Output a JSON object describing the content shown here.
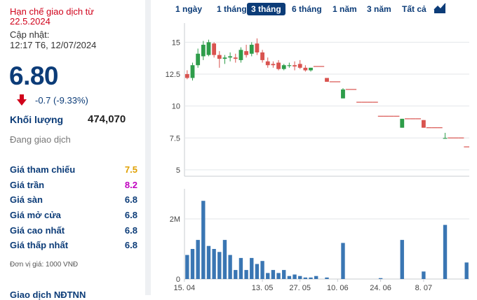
{
  "stock": {
    "status_line1": "Hạn chế giao dịch từ",
    "status_line2": "22.5.2024",
    "updated_label": "Cập nhật:",
    "updated_time": "12:17 T6, 12/07/2024",
    "price": "6.80",
    "change": "-0.7 (-9.33%)",
    "volume_label": "Khối lượng",
    "volume_value": "474,070",
    "trading_status": "Đang giao dịch",
    "stats": [
      {
        "label": "Giá tham chiếu",
        "value": "7.5",
        "color": "#e0a000"
      },
      {
        "label": "Giá trần",
        "value": "8.2",
        "color": "#c000c0"
      },
      {
        "label": "Giá sàn",
        "value": "6.8",
        "color": "#0c3c78"
      },
      {
        "label": "Giá mở cửa",
        "value": "6.8",
        "color": "#0c3c78"
      },
      {
        "label": "Giá cao nhất",
        "value": "6.8",
        "color": "#0c3c78"
      },
      {
        "label": "Giá thấp nhất",
        "value": "6.8",
        "color": "#0c3c78"
      }
    ],
    "unit": "Đơn vị giá: 1000 VNĐ",
    "bottom_cut": "Giao dịch NĐTNN"
  },
  "tabs": [
    "1 ngày",
    "1 tháng",
    "3 tháng",
    "6 tháng",
    "1 năm",
    "3 năm",
    "Tất cả"
  ],
  "active_tab": "3 tháng",
  "colors": {
    "up": "#2e9d4a",
    "down": "#d9534f",
    "ref": "#e0a000",
    "navy": "#0c3c78",
    "volume": "#3a76b3"
  },
  "chart_data": {
    "type": "candlestick",
    "price_axis": {
      "ticks": [
        5,
        7.5,
        10,
        12.5,
        15
      ],
      "ylim": [
        4.5,
        16.5
      ]
    },
    "volume_axis": {
      "ticks": [
        "0",
        "2M"
      ],
      "ylim": [
        0,
        3000000
      ]
    },
    "x_ticks": [
      "15. 04",
      "13. 05",
      "27. 05",
      "10. 06",
      "24. 06",
      "8. 07"
    ],
    "candles": [
      {
        "o": 12.5,
        "h": 12.8,
        "l": 12.1,
        "c": 12.2
      },
      {
        "o": 12.2,
        "h": 13.4,
        "l": 12.0,
        "c": 13.2
      },
      {
        "o": 13.2,
        "h": 14.5,
        "l": 13.0,
        "c": 14.1
      },
      {
        "o": 13.9,
        "h": 15.1,
        "l": 13.6,
        "c": 14.8
      },
      {
        "o": 14.0,
        "h": 15.2,
        "l": 13.9,
        "c": 15.0
      },
      {
        "o": 14.9,
        "h": 15.0,
        "l": 13.8,
        "c": 14.0
      },
      {
        "o": 14.0,
        "h": 14.3,
        "l": 13.0,
        "c": 13.7
      },
      {
        "o": 13.7,
        "h": 14.0,
        "l": 13.3,
        "c": 13.8
      },
      {
        "o": 13.8,
        "h": 14.2,
        "l": 13.5,
        "c": 13.9
      },
      {
        "o": 13.8,
        "h": 14.1,
        "l": 13.4,
        "c": 13.7
      },
      {
        "o": 13.6,
        "h": 14.6,
        "l": 13.4,
        "c": 14.4
      },
      {
        "o": 14.3,
        "h": 14.8,
        "l": 13.8,
        "c": 14.0
      },
      {
        "o": 14.1,
        "h": 15.0,
        "l": 13.9,
        "c": 14.8
      },
      {
        "o": 14.9,
        "h": 15.3,
        "l": 14.0,
        "c": 14.2
      },
      {
        "o": 14.2,
        "h": 14.4,
        "l": 13.4,
        "c": 13.6
      },
      {
        "o": 13.5,
        "h": 13.8,
        "l": 13.0,
        "c": 13.2
      },
      {
        "o": 13.3,
        "h": 13.5,
        "l": 13.0,
        "c": 13.2
      },
      {
        "o": 13.4,
        "h": 13.6,
        "l": 12.8,
        "c": 12.9
      },
      {
        "o": 12.9,
        "h": 13.3,
        "l": 12.8,
        "c": 13.2
      },
      {
        "o": 13.2,
        "h": 13.4,
        "l": 13.0,
        "c": 13.2
      },
      {
        "o": 13.2,
        "h": 13.5,
        "l": 12.8,
        "c": 13.1
      },
      {
        "o": 13.3,
        "h": 13.6,
        "l": 12.9,
        "c": 13.0
      },
      {
        "o": 13.0,
        "h": 13.2,
        "l": 12.7,
        "c": 12.8
      },
      {
        "o": 12.8,
        "h": 13.0,
        "l": 12.7,
        "c": 13.0
      },
      {
        "o": 13.1,
        "h": 13.1,
        "l": 13.1,
        "c": 13.1
      },
      {
        "o": 13.1,
        "h": 13.1,
        "l": 13.1,
        "c": 13.1
      },
      {
        "o": 12.2,
        "h": 12.2,
        "l": 11.9,
        "c": 11.9
      },
      {
        "o": 11.9,
        "h": 11.9,
        "l": 11.9,
        "c": 11.9
      },
      {
        "o": 11.9,
        "h": 11.9,
        "l": 11.9,
        "c": 11.9
      },
      {
        "o": 10.6,
        "h": 11.4,
        "l": 10.6,
        "c": 11.3
      },
      {
        "o": 11.3,
        "h": 11.3,
        "l": 11.3,
        "c": 11.3
      },
      {
        "o": 11.3,
        "h": 11.3,
        "l": 11.3,
        "c": 11.3
      },
      {
        "o": 10.3,
        "h": 10.3,
        "l": 10.3,
        "c": 10.3
      },
      {
        "o": 10.3,
        "h": 10.3,
        "l": 10.3,
        "c": 10.3
      },
      {
        "o": 10.3,
        "h": 10.3,
        "l": 10.3,
        "c": 10.3
      },
      {
        "o": 10.3,
        "h": 10.3,
        "l": 10.3,
        "c": 10.3
      },
      {
        "o": 9.2,
        "h": 9.2,
        "l": 9.2,
        "c": 9.2
      },
      {
        "o": 9.2,
        "h": 9.2,
        "l": 9.2,
        "c": 9.2
      },
      {
        "o": 9.2,
        "h": 9.2,
        "l": 9.2,
        "c": 9.2
      },
      {
        "o": 9.2,
        "h": 9.2,
        "l": 9.2,
        "c": 9.2
      },
      {
        "o": 8.3,
        "h": 9.0,
        "l": 8.3,
        "c": 9.0
      },
      {
        "o": 9.0,
        "h": 9.0,
        "l": 9.0,
        "c": 9.0
      },
      {
        "o": 9.0,
        "h": 9.0,
        "l": 9.0,
        "c": 9.0
      },
      {
        "o": 9.0,
        "h": 9.0,
        "l": 9.0,
        "c": 9.0
      },
      {
        "o": 8.9,
        "h": 8.9,
        "l": 8.3,
        "c": 8.3
      },
      {
        "o": 8.3,
        "h": 8.3,
        "l": 8.3,
        "c": 8.3
      },
      {
        "o": 8.3,
        "h": 8.3,
        "l": 8.3,
        "c": 8.3
      },
      {
        "o": 8.3,
        "h": 8.3,
        "l": 8.3,
        "c": 8.3
      },
      {
        "o": 7.5,
        "h": 7.9,
        "l": 7.5,
        "c": 7.5
      },
      {
        "o": 7.5,
        "h": 7.5,
        "l": 7.5,
        "c": 7.5
      },
      {
        "o": 7.5,
        "h": 7.5,
        "l": 7.5,
        "c": 7.5
      },
      {
        "o": 7.5,
        "h": 7.5,
        "l": 7.5,
        "c": 7.5
      },
      {
        "o": 6.8,
        "h": 6.8,
        "l": 6.8,
        "c": 6.8
      }
    ],
    "volumes": [
      800000,
      1000000,
      1300000,
      2600000,
      1100000,
      1000000,
      900000,
      1300000,
      800000,
      300000,
      700000,
      300000,
      700000,
      500000,
      600000,
      200000,
      300000,
      200000,
      300000,
      100000,
      150000,
      100000,
      50000,
      50000,
      100000,
      0,
      50000,
      0,
      0,
      1200000,
      0,
      0,
      0,
      0,
      0,
      0,
      30000,
      0,
      0,
      0,
      1300000,
      0,
      0,
      0,
      250000,
      0,
      0,
      0,
      1800000,
      0,
      0,
      0,
      550000
    ]
  }
}
